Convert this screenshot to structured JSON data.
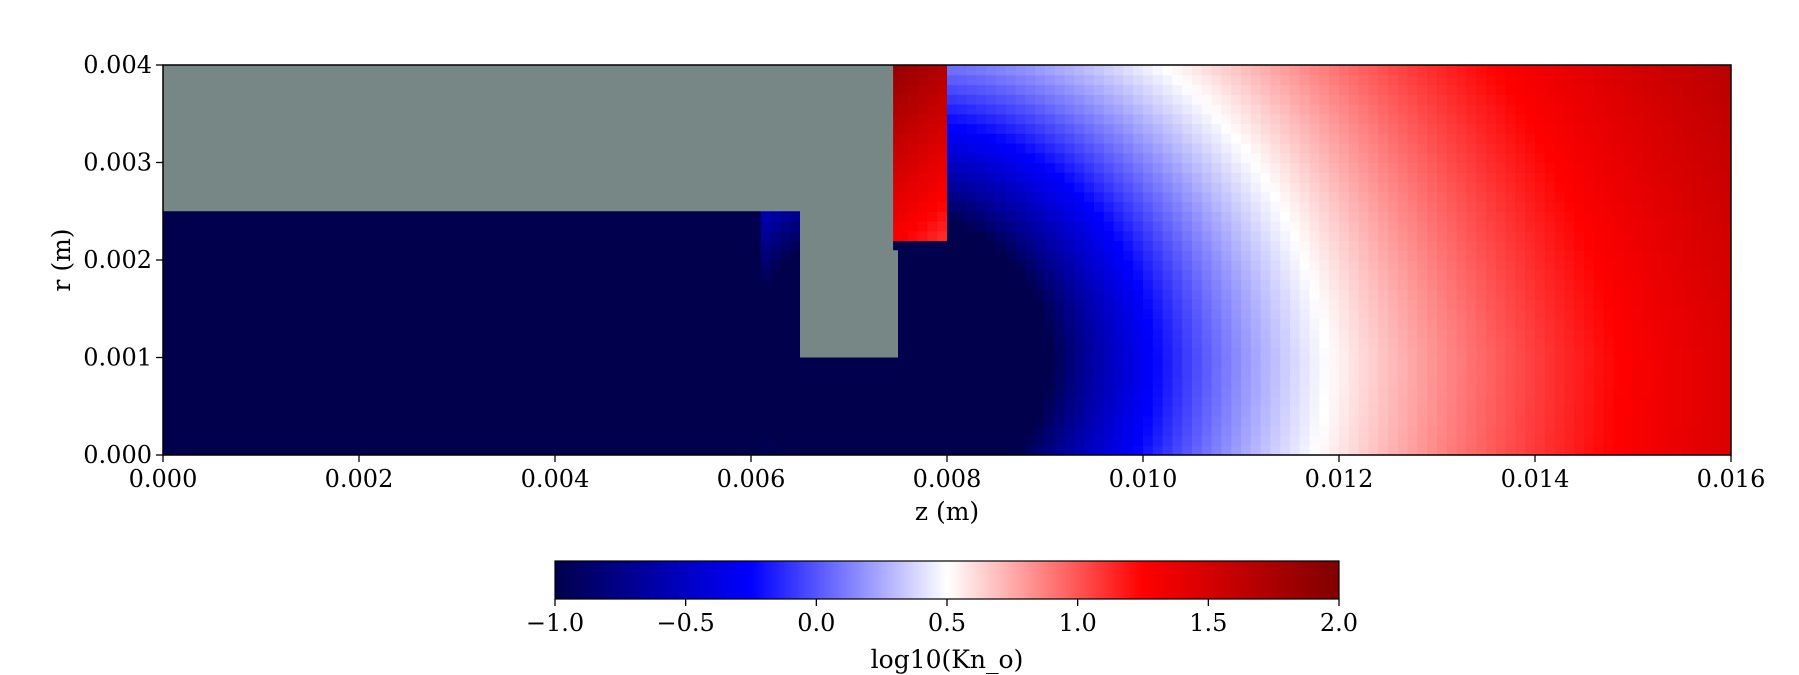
{
  "chart_data": {
    "type": "heatmap",
    "title": "",
    "xlabel": "z (m)",
    "ylabel": "r (m)",
    "xlim": [
      0.0,
      0.016
    ],
    "ylim": [
      0.0,
      0.004
    ],
    "xticks": [
      "0.000",
      "0.002",
      "0.004",
      "0.006",
      "0.008",
      "0.010",
      "0.012",
      "0.014",
      "0.016"
    ],
    "yticks": [
      "0.000",
      "0.001",
      "0.002",
      "0.003",
      "0.004"
    ],
    "grid": false,
    "field": {
      "name": "log10(Kn_o)",
      "expansion_center": [
        0.0075,
        0.001
      ],
      "min": -1.0,
      "max": 2.0
    },
    "solid_region": {
      "color": "#778785",
      "outline_rz": [
        [
          0.0,
          0.0025
        ],
        [
          0.0065,
          0.0025
        ],
        [
          0.0065,
          0.001
        ],
        [
          0.0075,
          0.001
        ],
        [
          0.0075,
          0.0021
        ],
        [
          0.00745,
          0.0021
        ],
        [
          0.00745,
          0.004
        ],
        [
          0.0,
          0.004
        ]
      ]
    },
    "colorbar": {
      "label": "log10(Kn_o)",
      "range": [
        -1.0,
        2.0
      ],
      "ticks": [
        -1.0,
        -0.5,
        0.0,
        0.5,
        1.0,
        1.5,
        2.0
      ],
      "tick_labels": [
        "−1.0",
        "−0.5",
        "0.0",
        "0.5",
        "1.0",
        "1.5",
        "2.0"
      ],
      "colormap": "seismic",
      "colors": [
        "#00004c",
        "#0000ff",
        "#ffffff",
        "#ff0000",
        "#800000"
      ],
      "orientation": "horizontal"
    }
  }
}
